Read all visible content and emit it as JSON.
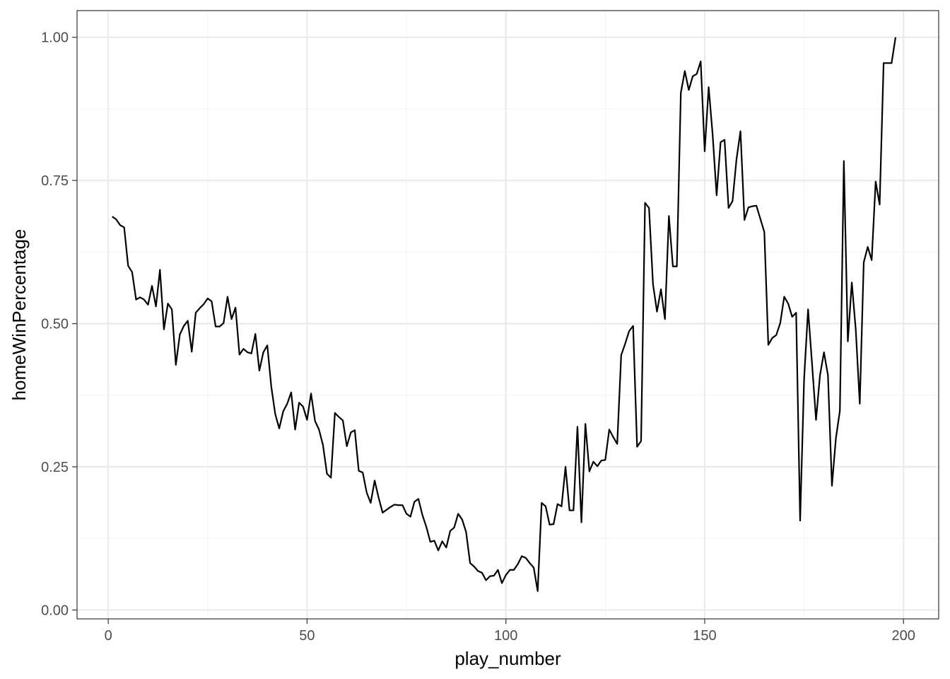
{
  "chart_data": {
    "type": "line",
    "title": "",
    "xlabel": "play_number",
    "ylabel": "homeWinPercentage",
    "xlim": [
      -7.85,
      208.85
    ],
    "ylim": [
      -0.0155,
      1.0466
    ],
    "x_ticks": [
      0,
      50,
      100,
      150,
      200
    ],
    "x_tick_labels": [
      "0",
      "50",
      "100",
      "150",
      "200"
    ],
    "y_ticks": [
      0,
      0.25,
      0.5,
      0.75,
      1.0
    ],
    "y_tick_labels": [
      "0.00",
      "0.25",
      "0.50",
      "0.75",
      "1.00"
    ],
    "grid": true,
    "legend": "none",
    "colors": {
      "line": "#000000",
      "grid_major": "#ebebeb",
      "grid_minor": "#f3f3f3",
      "panel_border": "#333333",
      "tick": "#333333",
      "tick_label": "#4d4d4d"
    },
    "series": [
      {
        "x": [
          1,
          2,
          3,
          4,
          5,
          6,
          7,
          8,
          9,
          10,
          11,
          12,
          13,
          14,
          15,
          16,
          17,
          18,
          19,
          20,
          21,
          22,
          23,
          24,
          25,
          26,
          27,
          28,
          29,
          30,
          31,
          32,
          33,
          34,
          35,
          36,
          37,
          38,
          39,
          40,
          41,
          42,
          43,
          44,
          45,
          46,
          47,
          48,
          49,
          50,
          51,
          52,
          53,
          54,
          55,
          56,
          57,
          58,
          59,
          60,
          61,
          62,
          63,
          64,
          65,
          66,
          67,
          68,
          69,
          70,
          71,
          72,
          73,
          74,
          75,
          76,
          77,
          78,
          79,
          80,
          81,
          82,
          83,
          84,
          85,
          86,
          87,
          88,
          89,
          90,
          91,
          92,
          93,
          94,
          95,
          96,
          97,
          98,
          99,
          100,
          101,
          102,
          103,
          104,
          105,
          106,
          107,
          108,
          109,
          110,
          111,
          112,
          113,
          114,
          115,
          116,
          117,
          118,
          119,
          120,
          121,
          122,
          123,
          124,
          125,
          126,
          127,
          128,
          129,
          130,
          131,
          132,
          133,
          134,
          135,
          136,
          137,
          138,
          139,
          140,
          141,
          142,
          143,
          144,
          145,
          146,
          147,
          148,
          149,
          150,
          151,
          152,
          153,
          154,
          155,
          156,
          157,
          158,
          159,
          160,
          161,
          162,
          163,
          164,
          165,
          166,
          167,
          168,
          169,
          170,
          171,
          172,
          173,
          174,
          175,
          176,
          177,
          178,
          179,
          180,
          181,
          182,
          183,
          184,
          185,
          186,
          187,
          188,
          189,
          190,
          191,
          192,
          193,
          194,
          195,
          196,
          197,
          198
        ],
        "y": [
          0.687,
          0.682,
          0.672,
          0.668,
          0.601,
          0.59,
          0.542,
          0.546,
          0.542,
          0.533,
          0.566,
          0.53,
          0.594,
          0.49,
          0.535,
          0.525,
          0.428,
          0.481,
          0.496,
          0.505,
          0.451,
          0.519,
          0.527,
          0.534,
          0.544,
          0.539,
          0.495,
          0.495,
          0.501,
          0.547,
          0.508,
          0.528,
          0.446,
          0.456,
          0.45,
          0.448,
          0.482,
          0.418,
          0.45,
          0.462,
          0.39,
          0.342,
          0.317,
          0.347,
          0.36,
          0.38,
          0.315,
          0.362,
          0.355,
          0.332,
          0.378,
          0.33,
          0.315,
          0.288,
          0.238,
          0.231,
          0.344,
          0.337,
          0.331,
          0.286,
          0.31,
          0.314,
          0.243,
          0.24,
          0.205,
          0.187,
          0.226,
          0.196,
          0.17,
          0.175,
          0.18,
          0.184,
          0.183,
          0.183,
          0.168,
          0.163,
          0.189,
          0.194,
          0.166,
          0.145,
          0.119,
          0.121,
          0.104,
          0.12,
          0.109,
          0.138,
          0.144,
          0.168,
          0.158,
          0.136,
          0.082,
          0.076,
          0.068,
          0.065,
          0.052,
          0.059,
          0.06,
          0.07,
          0.047,
          0.061,
          0.07,
          0.07,
          0.08,
          0.094,
          0.091,
          0.082,
          0.074,
          0.033,
          0.187,
          0.181,
          0.149,
          0.15,
          0.185,
          0.181,
          0.25,
          0.174,
          0.174,
          0.32,
          0.153,
          0.325,
          0.242,
          0.259,
          0.251,
          0.261,
          0.262,
          0.315,
          0.302,
          0.29,
          0.445,
          0.465,
          0.487,
          0.496,
          0.285,
          0.295,
          0.711,
          0.702,
          0.569,
          0.521,
          0.56,
          0.508,
          0.688,
          0.6,
          0.6,
          0.903,
          0.941,
          0.908,
          0.932,
          0.936,
          0.958,
          0.801,
          0.913,
          0.83,
          0.724,
          0.817,
          0.821,
          0.702,
          0.714,
          0.787,
          0.836,
          0.681,
          0.703,
          0.705,
          0.706,
          0.683,
          0.66,
          0.463,
          0.475,
          0.48,
          0.501,
          0.547,
          0.535,
          0.512,
          0.519,
          0.156,
          0.403,
          0.525,
          0.43,
          0.332,
          0.41,
          0.45,
          0.41,
          0.217,
          0.3,
          0.348,
          0.784,
          0.469,
          0.572,
          0.489,
          0.36,
          0.607,
          0.634,
          0.611,
          0.748,
          0.708,
          0.955,
          0.955,
          0.955,
          1.0
        ]
      }
    ]
  }
}
